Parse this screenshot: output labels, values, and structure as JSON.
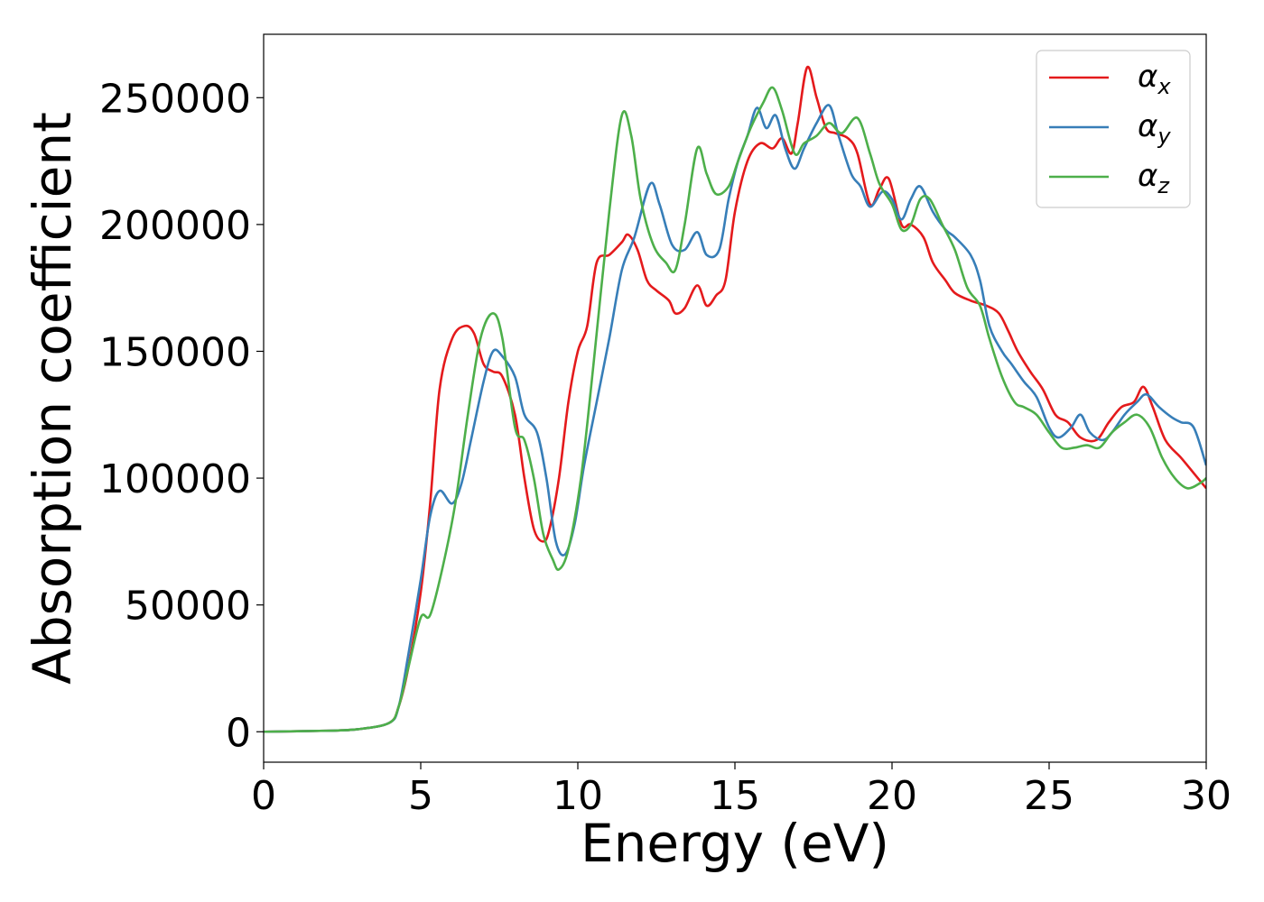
{
  "chart_data": {
    "type": "line",
    "title": "",
    "xlabel": "Energy (eV)",
    "ylabel": "Absorption coefficient",
    "xlim": [
      0,
      30
    ],
    "ylim": [
      -12000,
      275000
    ],
    "xticks": [
      0,
      5,
      10,
      15,
      20,
      25,
      30
    ],
    "xtick_labels": [
      "0",
      "5",
      "10",
      "15",
      "20",
      "25",
      "30"
    ],
    "yticks": [
      0,
      50000,
      100000,
      150000,
      200000,
      250000
    ],
    "ytick_labels": [
      "0",
      "50000",
      "100000",
      "150000",
      "200000",
      "250000"
    ],
    "grid": false,
    "legend_position": "top-right",
    "series": [
      {
        "name": "α",
        "subscript": "x",
        "color": "#e41a1c",
        "points": [
          [
            0,
            0
          ],
          [
            2,
            400
          ],
          [
            3,
            1000
          ],
          [
            4,
            3500
          ],
          [
            4.3,
            10000
          ],
          [
            4.6,
            25000
          ],
          [
            5,
            55000
          ],
          [
            5.3,
            90000
          ],
          [
            5.6,
            135000
          ],
          [
            6,
            155000
          ],
          [
            6.4,
            160000
          ],
          [
            6.7,
            157000
          ],
          [
            7,
            145000
          ],
          [
            7.3,
            142000
          ],
          [
            7.6,
            140000
          ],
          [
            8,
            125000
          ],
          [
            8.3,
            100000
          ],
          [
            8.6,
            80000
          ],
          [
            8.9,
            75000
          ],
          [
            9.1,
            80000
          ],
          [
            9.4,
            100000
          ],
          [
            9.7,
            130000
          ],
          [
            10,
            150000
          ],
          [
            10.3,
            160000
          ],
          [
            10.6,
            185000
          ],
          [
            11,
            188000
          ],
          [
            11.4,
            193000
          ],
          [
            11.6,
            196000
          ],
          [
            11.9,
            190000
          ],
          [
            12.2,
            178000
          ],
          [
            12.5,
            174000
          ],
          [
            12.9,
            170000
          ],
          [
            13.1,
            165000
          ],
          [
            13.4,
            167000
          ],
          [
            13.8,
            176000
          ],
          [
            14.1,
            168000
          ],
          [
            14.4,
            172000
          ],
          [
            14.7,
            178000
          ],
          [
            15,
            205000
          ],
          [
            15.4,
            225000
          ],
          [
            15.8,
            232000
          ],
          [
            16.2,
            230000
          ],
          [
            16.5,
            234000
          ],
          [
            16.8,
            228000
          ],
          [
            17,
            240000
          ],
          [
            17.3,
            262000
          ],
          [
            17.6,
            250000
          ],
          [
            17.9,
            238000
          ],
          [
            18.2,
            236000
          ],
          [
            18.6,
            234000
          ],
          [
            18.9,
            228000
          ],
          [
            19.3,
            208000
          ],
          [
            19.6,
            214000
          ],
          [
            19.9,
            218000
          ],
          [
            20.3,
            200000
          ],
          [
            20.6,
            200000
          ],
          [
            21,
            195000
          ],
          [
            21.3,
            185000
          ],
          [
            21.7,
            178000
          ],
          [
            22,
            173000
          ],
          [
            22.5,
            170000
          ],
          [
            23,
            168000
          ],
          [
            23.4,
            165000
          ],
          [
            23.7,
            158000
          ],
          [
            24,
            150000
          ],
          [
            24.4,
            142000
          ],
          [
            24.8,
            135000
          ],
          [
            25.2,
            125000
          ],
          [
            25.6,
            122000
          ],
          [
            26,
            116000
          ],
          [
            26.5,
            115000
          ],
          [
            26.9,
            122000
          ],
          [
            27.3,
            128000
          ],
          [
            27.7,
            130000
          ],
          [
            28,
            136000
          ],
          [
            28.3,
            128000
          ],
          [
            28.7,
            115000
          ],
          [
            29.2,
            108000
          ],
          [
            29.6,
            102000
          ],
          [
            30,
            96000
          ]
        ]
      },
      {
        "name": "α",
        "subscript": "y",
        "color": "#377eb8",
        "points": [
          [
            0,
            0
          ],
          [
            2,
            400
          ],
          [
            3,
            1000
          ],
          [
            4,
            3500
          ],
          [
            4.3,
            10000
          ],
          [
            4.6,
            30000
          ],
          [
            5,
            60000
          ],
          [
            5.3,
            85000
          ],
          [
            5.6,
            95000
          ],
          [
            6,
            90000
          ],
          [
            6.3,
            98000
          ],
          [
            6.6,
            115000
          ],
          [
            7,
            138000
          ],
          [
            7.3,
            150000
          ],
          [
            7.6,
            148000
          ],
          [
            8,
            140000
          ],
          [
            8.3,
            125000
          ],
          [
            8.7,
            118000
          ],
          [
            9,
            100000
          ],
          [
            9.3,
            75000
          ],
          [
            9.6,
            70000
          ],
          [
            9.9,
            82000
          ],
          [
            10.2,
            105000
          ],
          [
            10.6,
            130000
          ],
          [
            11,
            155000
          ],
          [
            11.4,
            182000
          ],
          [
            11.8,
            195000
          ],
          [
            12.3,
            216000
          ],
          [
            12.6,
            208000
          ],
          [
            13,
            192000
          ],
          [
            13.4,
            190000
          ],
          [
            13.8,
            197000
          ],
          [
            14.1,
            188000
          ],
          [
            14.5,
            190000
          ],
          [
            14.8,
            210000
          ],
          [
            15.1,
            225000
          ],
          [
            15.4,
            235000
          ],
          [
            15.7,
            246000
          ],
          [
            16,
            238000
          ],
          [
            16.3,
            243000
          ],
          [
            16.6,
            230000
          ],
          [
            16.9,
            222000
          ],
          [
            17.2,
            230000
          ],
          [
            17.6,
            240000
          ],
          [
            18,
            247000
          ],
          [
            18.3,
            235000
          ],
          [
            18.7,
            220000
          ],
          [
            19,
            215000
          ],
          [
            19.3,
            207000
          ],
          [
            19.7,
            213000
          ],
          [
            20,
            210000
          ],
          [
            20.3,
            202000
          ],
          [
            20.6,
            210000
          ],
          [
            20.9,
            215000
          ],
          [
            21.3,
            205000
          ],
          [
            21.7,
            198000
          ],
          [
            22,
            195000
          ],
          [
            22.5,
            188000
          ],
          [
            22.8,
            178000
          ],
          [
            23.1,
            160000
          ],
          [
            23.5,
            150000
          ],
          [
            23.8,
            145000
          ],
          [
            24.2,
            138000
          ],
          [
            24.6,
            132000
          ],
          [
            25,
            120000
          ],
          [
            25.3,
            116000
          ],
          [
            25.7,
            120000
          ],
          [
            26,
            125000
          ],
          [
            26.3,
            118000
          ],
          [
            26.7,
            115000
          ],
          [
            27,
            118000
          ],
          [
            27.4,
            125000
          ],
          [
            27.8,
            130000
          ],
          [
            28.1,
            133000
          ],
          [
            28.5,
            128000
          ],
          [
            28.9,
            124000
          ],
          [
            29.2,
            122000
          ],
          [
            29.6,
            120000
          ],
          [
            30,
            105000
          ]
        ]
      },
      {
        "name": "α",
        "subscript": "z",
        "color": "#4daf4a",
        "points": [
          [
            0,
            0
          ],
          [
            2,
            400
          ],
          [
            3,
            1000
          ],
          [
            4,
            3500
          ],
          [
            4.3,
            10000
          ],
          [
            4.6,
            25000
          ],
          [
            5,
            45000
          ],
          [
            5.3,
            46000
          ],
          [
            5.7,
            65000
          ],
          [
            6.1,
            90000
          ],
          [
            6.5,
            125000
          ],
          [
            6.9,
            155000
          ],
          [
            7.3,
            165000
          ],
          [
            7.6,
            155000
          ],
          [
            8,
            120000
          ],
          [
            8.3,
            115000
          ],
          [
            8.6,
            100000
          ],
          [
            8.9,
            78000
          ],
          [
            9.2,
            68000
          ],
          [
            9.4,
            64000
          ],
          [
            9.7,
            72000
          ],
          [
            10.1,
            100000
          ],
          [
            10.5,
            145000
          ],
          [
            11,
            205000
          ],
          [
            11.4,
            243000
          ],
          [
            11.7,
            235000
          ],
          [
            12,
            210000
          ],
          [
            12.4,
            192000
          ],
          [
            12.8,
            185000
          ],
          [
            13.1,
            182000
          ],
          [
            13.4,
            200000
          ],
          [
            13.8,
            230000
          ],
          [
            14.1,
            220000
          ],
          [
            14.4,
            212000
          ],
          [
            14.8,
            215000
          ],
          [
            15.1,
            225000
          ],
          [
            15.5,
            238000
          ],
          [
            15.9,
            248000
          ],
          [
            16.2,
            254000
          ],
          [
            16.5,
            245000
          ],
          [
            16.9,
            228000
          ],
          [
            17.2,
            232000
          ],
          [
            17.6,
            235000
          ],
          [
            18,
            240000
          ],
          [
            18.4,
            236000
          ],
          [
            18.9,
            242000
          ],
          [
            19.3,
            228000
          ],
          [
            19.6,
            216000
          ],
          [
            20,
            208000
          ],
          [
            20.3,
            198000
          ],
          [
            20.6,
            200000
          ],
          [
            20.9,
            210000
          ],
          [
            21.2,
            210000
          ],
          [
            21.6,
            200000
          ],
          [
            22,
            190000
          ],
          [
            22.4,
            175000
          ],
          [
            22.8,
            168000
          ],
          [
            23.1,
            155000
          ],
          [
            23.5,
            140000
          ],
          [
            23.9,
            130000
          ],
          [
            24.2,
            128000
          ],
          [
            24.6,
            125000
          ],
          [
            25,
            118000
          ],
          [
            25.4,
            112000
          ],
          [
            25.8,
            112000
          ],
          [
            26.2,
            113000
          ],
          [
            26.6,
            112000
          ],
          [
            27,
            118000
          ],
          [
            27.4,
            122000
          ],
          [
            27.8,
            125000
          ],
          [
            28.2,
            120000
          ],
          [
            28.6,
            108000
          ],
          [
            29,
            100000
          ],
          [
            29.4,
            96000
          ],
          [
            29.8,
            98000
          ],
          [
            30,
            100000
          ]
        ]
      }
    ]
  }
}
